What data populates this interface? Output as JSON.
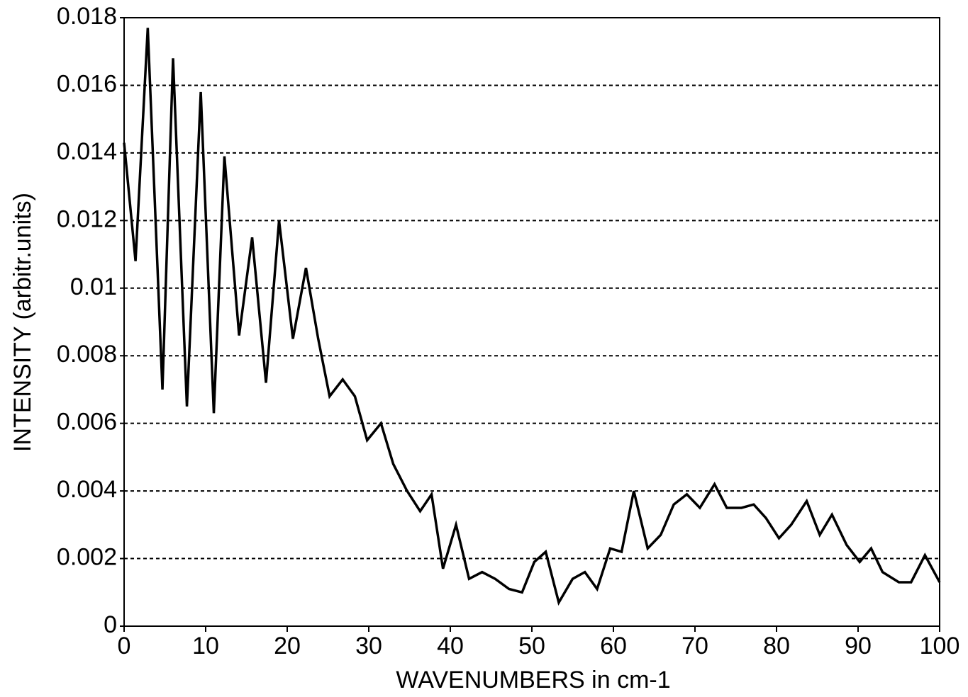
{
  "chart_data": {
    "type": "line",
    "xlabel": "WAVENUMBERS in cm-1",
    "ylabel": "INTENSITY (arbitr.units)",
    "x": [
      0,
      1.4,
      2.9,
      4.7,
      6.0,
      7.7,
      9.4,
      11.0,
      12.3,
      14.1,
      15.7,
      17.4,
      19.0,
      20.7,
      22.3,
      23.8,
      25.2,
      26.8,
      28.3,
      29.8,
      31.5,
      33.0,
      34.7,
      36.3,
      37.7,
      39.1,
      40.7,
      42.3,
      43.9,
      45.5,
      47.2,
      48.8,
      50.3,
      51.7,
      53.3,
      55.0,
      56.5,
      58.0,
      59.6,
      61.0,
      62.5,
      64.2,
      65.8,
      67.4,
      69.0,
      70.6,
      72.4,
      73.9,
      75.7,
      77.2,
      78.7,
      80.3,
      81.8,
      83.7,
      85.3,
      86.8,
      88.6,
      90.2,
      91.6,
      93.0,
      95.0,
      96.5,
      98.2,
      100
    ],
    "series": [
      {
        "color": "#000000",
        "values": [
          0.0143,
          0.0108,
          0.0177,
          0.007,
          0.0168,
          0.0065,
          0.0158,
          0.0063,
          0.0139,
          0.0086,
          0.0115,
          0.0072,
          0.012,
          0.0085,
          0.0106,
          0.0085,
          0.0068,
          0.0073,
          0.0068,
          0.0055,
          0.006,
          0.0048,
          0.004,
          0.0034,
          0.0039,
          0.0017,
          0.003,
          0.0014,
          0.0016,
          0.0014,
          0.0011,
          0.001,
          0.0019,
          0.0022,
          0.0007,
          0.0014,
          0.0016,
          0.0011,
          0.0023,
          0.0022,
          0.004,
          0.0023,
          0.0027,
          0.0036,
          0.0039,
          0.0035,
          0.0042,
          0.0035,
          0.0035,
          0.0036,
          0.0032,
          0.0026,
          0.003,
          0.0037,
          0.0027,
          0.0033,
          0.0024,
          0.0019,
          0.0023,
          0.0016,
          0.0013,
          0.0013,
          0.0021,
          0.0013
        ]
      }
    ],
    "xlim": [
      0,
      100
    ],
    "xticks": [
      0,
      10,
      20,
      30,
      40,
      50,
      60,
      70,
      80,
      90,
      100
    ],
    "ylim": [
      0,
      0.018
    ],
    "yticks": [
      0,
      0.002,
      0.004,
      0.006,
      0.008,
      0.01,
      0.012,
      0.014,
      0.016,
      0.018
    ],
    "grid": true
  }
}
